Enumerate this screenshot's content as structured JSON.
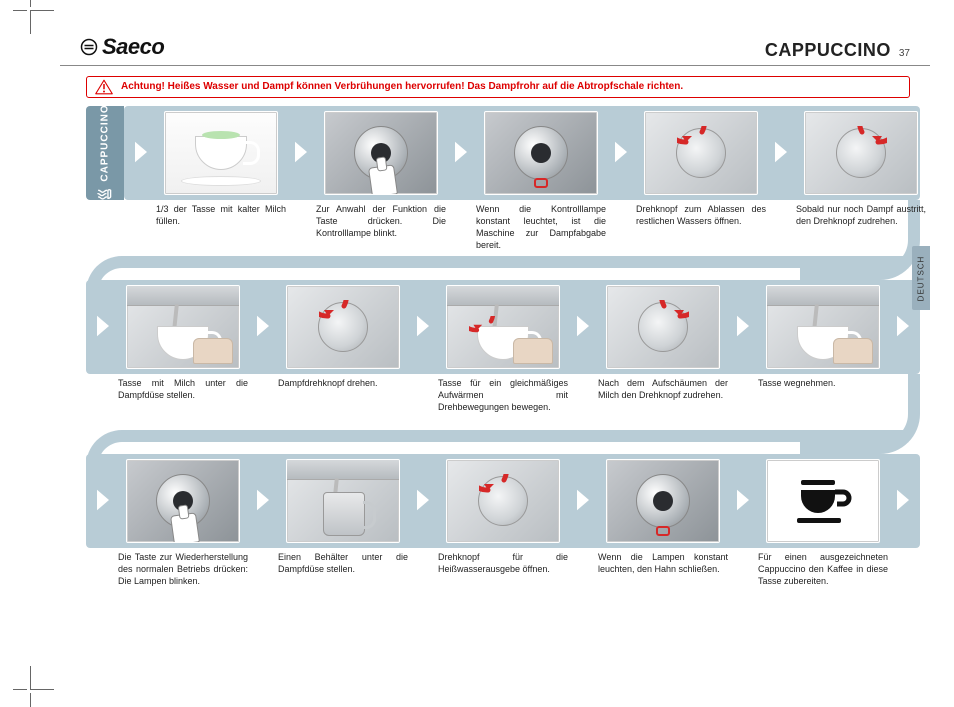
{
  "header": {
    "logo_text": "Saeco",
    "title": "CAPPUCCINO",
    "page_number": "37"
  },
  "warning": {
    "text": "Achtung! Heißes Wasser und Dampf können Verbrühungen hervorrufen! Das Dampfrohr auf die Abtropfschale richten."
  },
  "side_tab": {
    "label": "CAPPUCCINO"
  },
  "lang_tab": "DEUTSCH",
  "colors": {
    "row_bg": "#b8ccd6",
    "side_tab_bg": "#7a98a7",
    "warn": "#d00000",
    "arrow_red": "#d62828"
  },
  "rows": [
    {
      "steps": [
        {
          "kind": "cup-milk",
          "caption": "1/3 der Tasse mit kalter Milch füllen."
        },
        {
          "kind": "dial-press",
          "caption": "Zur Anwahl der Funktion die Taste drücken. Die Kontrolllampe blinkt."
        },
        {
          "kind": "dial-ready",
          "caption": "Wenn die Kontrolllampe konstant leuchtet, ist die Maschine zur Dampfabgabe bereit."
        },
        {
          "kind": "knob-open",
          "caption": "Drehknopf zum Ablassen des restlichen Wassers öffnen."
        },
        {
          "kind": "knob-close",
          "caption": "Sobald nur noch Dampf austritt, den Drehknopf zudrehen."
        }
      ]
    },
    {
      "steps": [
        {
          "kind": "cup-under-wand",
          "caption": "Tasse mit Milch unter die Dampfdüse stellen."
        },
        {
          "kind": "knob-open",
          "caption": "Dampfdrehknopf drehen."
        },
        {
          "kind": "cup-swirl",
          "caption": "Tasse für ein gleichmäßiges Aufwärmen mit Drehbewegungen bewegen."
        },
        {
          "kind": "knob-close",
          "caption": "Nach dem Aufschäumen der Milch den Drehknopf zudrehen."
        },
        {
          "kind": "cup-remove",
          "caption": "Tasse wegnehmen."
        }
      ]
    },
    {
      "steps": [
        {
          "kind": "dial-press",
          "caption": "Die Taste zur Wiederherstellung des normalen Betriebs drücken: Die Lampen blinken."
        },
        {
          "kind": "pitcher-under",
          "caption": "Einen Behälter unter die Dampfdüse stellen."
        },
        {
          "kind": "knob-open",
          "caption": "Drehknopf für die Heißwasserausgebe öffnen."
        },
        {
          "kind": "dial-ready",
          "caption": "Wenn die Lampen konstant leuchten, den Hahn schließen."
        },
        {
          "kind": "coffee-icon",
          "caption": "Für einen ausgezeichneten Cappuccino den Kaffee in diese Tasse zubereiten."
        }
      ]
    }
  ]
}
